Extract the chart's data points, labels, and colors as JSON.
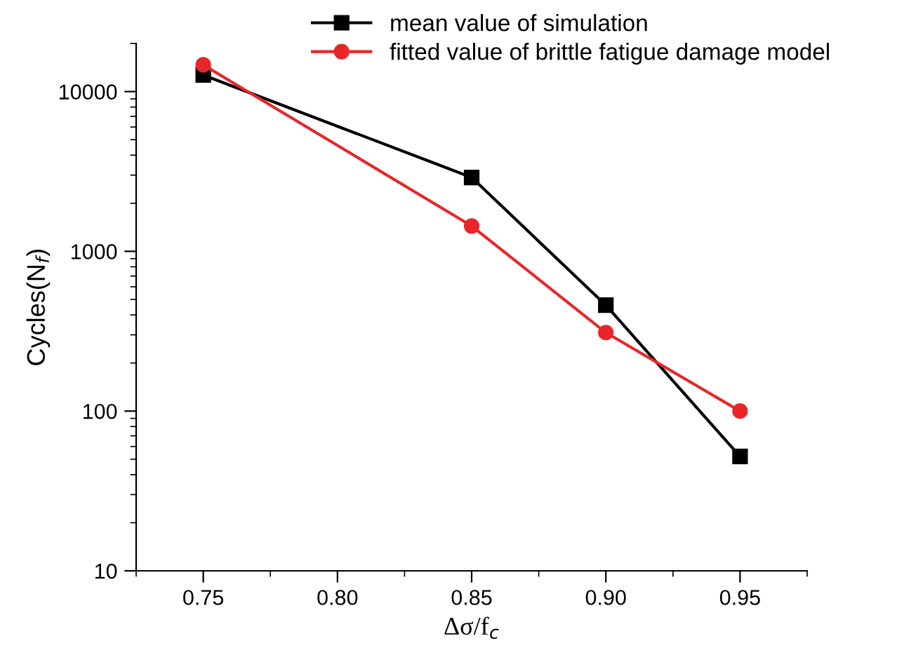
{
  "chart_data": {
    "type": "line",
    "xlabel": "Δσ/f$_{c}$",
    "ylabel": "Cycles(N$_{f}$)",
    "x": [
      0.75,
      0.85,
      0.9,
      0.95
    ],
    "series": [
      {
        "name": "mean value of simulation",
        "color": "#000000",
        "marker": "square",
        "values": [
          12700,
          2900,
          460,
          52
        ]
      },
      {
        "name": "fitted value of brittle fatigue damage model",
        "color": "#e8262a",
        "marker": "circle",
        "values": [
          14700,
          1440,
          310,
          100
        ]
      }
    ],
    "log": "y",
    "xlim": [
      0.725,
      0.975
    ],
    "xticks": [
      {
        "value": 0.75,
        "label": "0.75"
      },
      {
        "value": 0.8,
        "label": "0.80"
      },
      {
        "value": 0.85,
        "label": "0.85"
      },
      {
        "value": 0.9,
        "label": "0.90"
      },
      {
        "value": 0.95,
        "label": "0.95"
      }
    ],
    "ylim": [
      10,
      20000
    ],
    "yticks": [
      10,
      100,
      1000,
      10000
    ],
    "grid": false,
    "legend": "top",
    "line_style": "solid"
  }
}
